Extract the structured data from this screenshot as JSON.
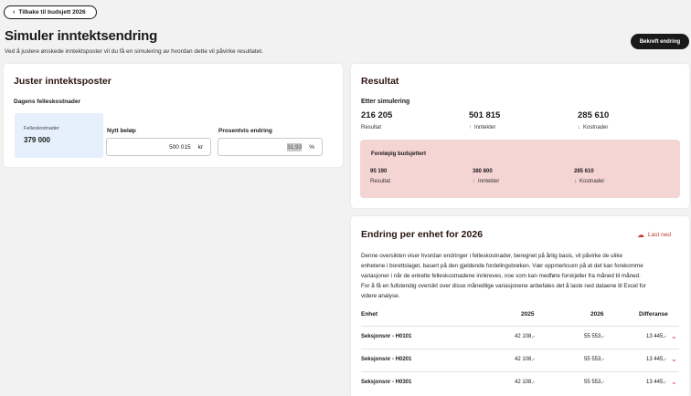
{
  "nav": {
    "back_label": "Tilbake til budsjett 2026"
  },
  "header": {
    "title": "Simuler inntektsendring",
    "subtitle": "Ved å justere ønskede inntektsposter vil du få en simulering av hvordan dette vil påvirke resultatet.",
    "confirm_label": "Bekreft endring"
  },
  "adjust": {
    "title": "Juster inntektsposter",
    "section_label": "Dagens felleskostnader",
    "current_label": "Felleskostnader",
    "current_value": "379 000",
    "new_amount_label": "Nytt beløp",
    "new_amount_value": "500 015",
    "new_amount_unit": "kr",
    "percent_label": "Prosentvis endring",
    "percent_value": "31,93",
    "percent_unit": "%"
  },
  "result": {
    "title": "Resultat",
    "after_label": "Etter simulering",
    "result_value": "216 205",
    "result_label": "Resultat",
    "income_value": "501 815",
    "income_label": "Inntekter",
    "cost_value": "285 610",
    "cost_label": "Kostnader",
    "prelim": {
      "title": "Foreløpig budsjettert",
      "result_value": "95 190",
      "result_label": "Resultat",
      "income_value": "380 800",
      "income_label": "Inntekter",
      "cost_value": "285 610",
      "cost_label": "Kostnader"
    }
  },
  "units": {
    "title": "Endring per enhet for 2026",
    "download_label": "Last ned",
    "description": [
      "Denne oversikten viser hvordan endringer i felleskostnader, beregnet på årlig basis, vil påvirke de ulike",
      "enhetene i borettslaget, basert på den gjeldende fordelingsbrøken. Vær oppmerksom på at det kan forekomme",
      "variasjoner i når de enkelte felleskostnadene innkreves, noe som kan medføre forskjeller fra måned til måned.",
      "For å få en fullstendig oversikt over disse månedlige variasjonene anbefales det å laste ned dataene til Excel for",
      "videre analyse."
    ],
    "columns": [
      "Enhet",
      "2025",
      "2026",
      "Differanse"
    ],
    "rows": [
      {
        "unit": "Seksjonsnr - H0101",
        "y2025": "42 108,-",
        "y2026": "55 553,-",
        "diff": "13 445,-"
      },
      {
        "unit": "Seksjonsnr - H0201",
        "y2025": "42 108,-",
        "y2026": "55 553,-",
        "diff": "13 445,-"
      },
      {
        "unit": "Seksjonsnr - H0301",
        "y2025": "42 108,-",
        "y2026": "55 553,-",
        "diff": "13 445,-"
      }
    ]
  },
  "colors": {
    "accent": "#c0392b",
    "positive": "#2e9d48",
    "pink_bg": "#f5d4d4",
    "blue_bg": "#e6f0fc",
    "dark": "#1a1a1a"
  }
}
